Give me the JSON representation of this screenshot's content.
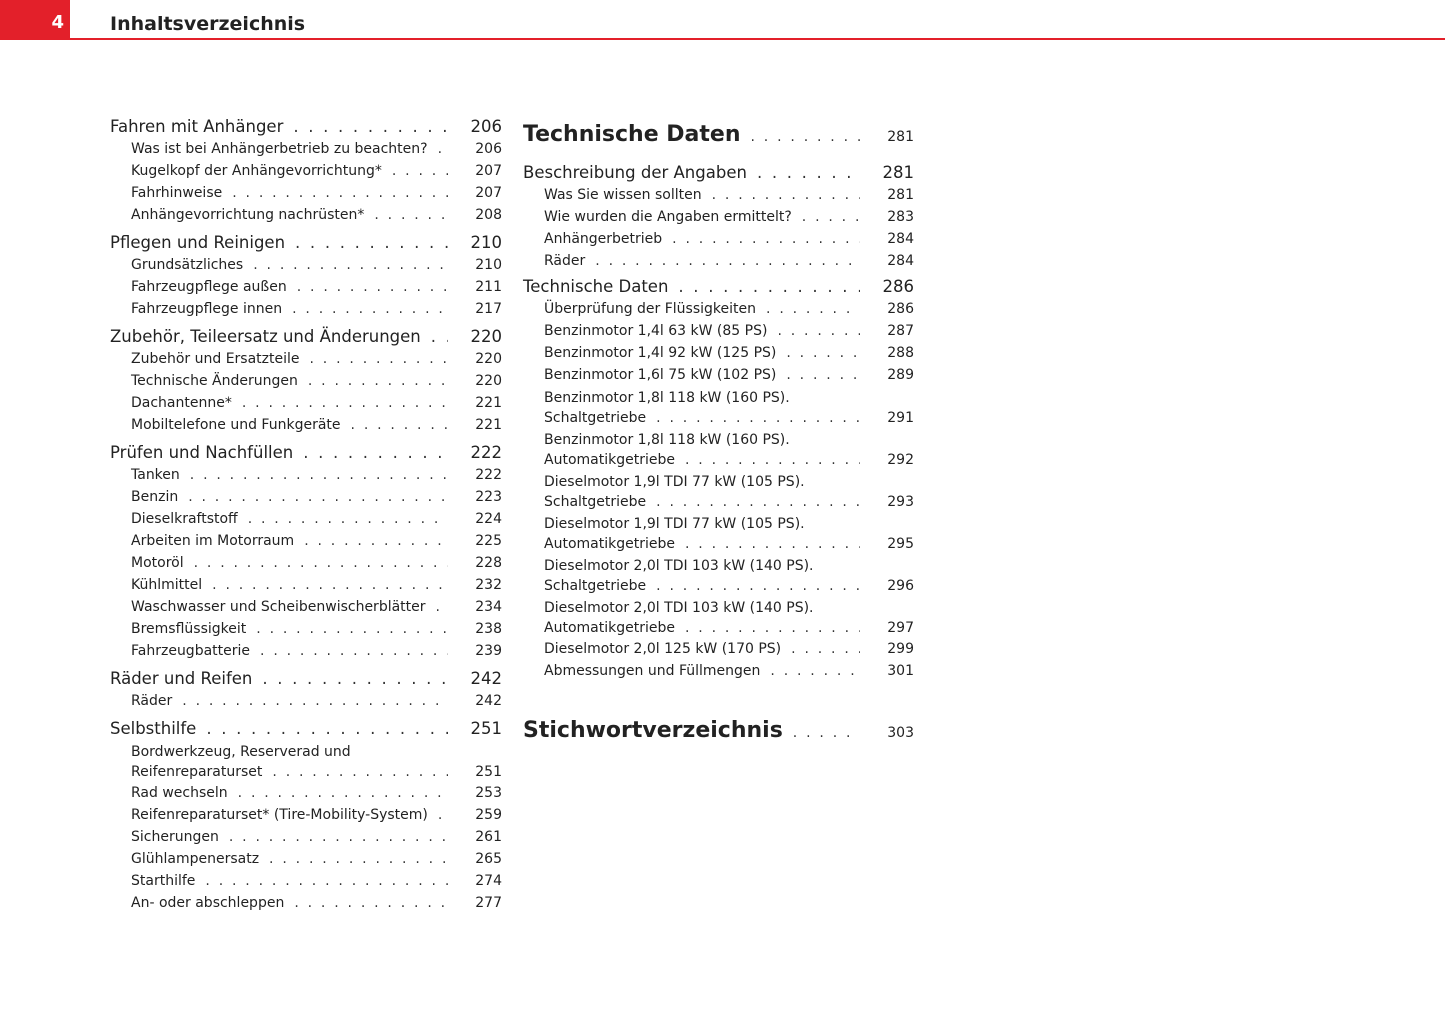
{
  "header": {
    "page_number": "4",
    "title": "Inhaltsverzeichnis",
    "accent": "#e3202a"
  },
  "left_column": [
    {
      "level": 1,
      "title": "Fahren mit Anhänger",
      "page": "206"
    },
    {
      "level": 2,
      "title": "Was ist bei Anhängerbetrieb zu beachten?",
      "page": "206"
    },
    {
      "level": 2,
      "title": "Kugelkopf der Anhängevorrichtung*",
      "page": "207"
    },
    {
      "level": 2,
      "title": "Fahrhinweise",
      "page": "207"
    },
    {
      "level": 2,
      "title": "Anhängevorrichtung nachrüsten*",
      "page": "208"
    },
    {
      "level": 1,
      "title": "Pflegen und Reinigen",
      "page": "210"
    },
    {
      "level": 2,
      "title": "Grundsätzliches",
      "page": "210"
    },
    {
      "level": 2,
      "title": "Fahrzeugpflege außen",
      "page": "211"
    },
    {
      "level": 2,
      "title": "Fahrzeugpflege innen",
      "page": "217"
    },
    {
      "level": 1,
      "title": "Zubehör, Teileersatz und Änderungen",
      "page": "220"
    },
    {
      "level": 2,
      "title": "Zubehör und Ersatzteile",
      "page": "220"
    },
    {
      "level": 2,
      "title": "Technische Änderungen",
      "page": "220"
    },
    {
      "level": 2,
      "title": "Dachantenne*",
      "page": "221"
    },
    {
      "level": 2,
      "title": "Mobiltelefone und Funkgeräte",
      "page": "221"
    },
    {
      "level": 1,
      "title": "Prüfen und Nachfüllen",
      "page": "222"
    },
    {
      "level": 2,
      "title": "Tanken",
      "page": "222"
    },
    {
      "level": 2,
      "title": "Benzin",
      "page": "223"
    },
    {
      "level": 2,
      "title": "Dieselkraftstoff",
      "page": "224"
    },
    {
      "level": 2,
      "title": "Arbeiten im Motorraum",
      "page": "225"
    },
    {
      "level": 2,
      "title": "Motoröl",
      "page": "228"
    },
    {
      "level": 2,
      "title": "Kühlmittel",
      "page": "232"
    },
    {
      "level": 2,
      "title": "Waschwasser und Scheibenwischerblätter",
      "page": "234"
    },
    {
      "level": 2,
      "title": "Bremsflüssigkeit",
      "page": "238"
    },
    {
      "level": 2,
      "title": "Fahrzeugbatterie",
      "page": "239"
    },
    {
      "level": 1,
      "title": "Räder und Reifen",
      "page": "242"
    },
    {
      "level": 2,
      "title": "Räder",
      "page": "242"
    },
    {
      "level": 1,
      "title": "Selbsthilfe",
      "page": "251"
    },
    {
      "level": 2,
      "title": "Bordwerkzeug, Reserverad und",
      "title2": "Reifenreparaturset",
      "page": "251"
    },
    {
      "level": 2,
      "title": "Rad wechseln",
      "page": "253"
    },
    {
      "level": 2,
      "title": "Reifenreparaturset* (Tire-Mobility-System)",
      "page": "259"
    },
    {
      "level": 2,
      "title": "Sicherungen",
      "page": "261"
    },
    {
      "level": 2,
      "title": "Glühlampenersatz",
      "page": "265"
    },
    {
      "level": 2,
      "title": "Starthilfe",
      "page": "274"
    },
    {
      "level": 2,
      "title": "An- oder abschleppen",
      "page": "277"
    }
  ],
  "right_column": [
    {
      "level": 0,
      "title": "Technische Daten",
      "page": "281"
    },
    {
      "level": 1,
      "title": "Beschreibung der Angaben",
      "page": "281"
    },
    {
      "level": 2,
      "title": "Was Sie wissen sollten",
      "page": "281"
    },
    {
      "level": 2,
      "title": "Wie wurden die Angaben ermittelt?",
      "page": "283"
    },
    {
      "level": 2,
      "title": "Anhängerbetrieb",
      "page": "284"
    },
    {
      "level": 2,
      "title": "Räder",
      "page": "284"
    },
    {
      "level": 1,
      "title": "Technische Daten",
      "page": "286"
    },
    {
      "level": 2,
      "title": "Überprüfung der Flüssigkeiten",
      "page": "286"
    },
    {
      "level": 2,
      "title": "Benzinmotor 1,4l 63 kW (85 PS)",
      "page": "287"
    },
    {
      "level": 2,
      "title": "Benzinmotor 1,4l 92 kW (125 PS)",
      "page": "288"
    },
    {
      "level": 2,
      "title": "Benzinmotor 1,6l 75 kW (102 PS)",
      "page": "289"
    },
    {
      "level": 2,
      "title": "Benzinmotor 1,8l 118 kW (160 PS).",
      "title2": "Schaltgetriebe",
      "page": "291"
    },
    {
      "level": 2,
      "title": "Benzinmotor 1,8l 118 kW (160 PS).",
      "title2": "Automatikgetriebe",
      "page": "292"
    },
    {
      "level": 2,
      "title": "Dieselmotor 1,9l TDI 77 kW (105 PS).",
      "title2": "Schaltgetriebe",
      "page": "293"
    },
    {
      "level": 2,
      "title": "Dieselmotor 1,9l TDI 77 kW (105 PS).",
      "title2": "Automatikgetriebe",
      "page": "295"
    },
    {
      "level": 2,
      "title": "Dieselmotor 2,0l TDI 103 kW (140 PS).",
      "title2": "Schaltgetriebe",
      "page": "296"
    },
    {
      "level": 2,
      "title": "Dieselmotor 2,0l TDI 103 kW (140 PS).",
      "title2": "Automatikgetriebe",
      "page": "297"
    },
    {
      "level": 2,
      "title": "Dieselmotor 2,0l 125 kW (170 PS)",
      "page": "299"
    },
    {
      "level": 2,
      "title": "Abmessungen und Füllmengen",
      "page": "301"
    },
    {
      "level": 0,
      "title": "Stichwortverzeichnis",
      "page": "303",
      "gap": true
    }
  ]
}
